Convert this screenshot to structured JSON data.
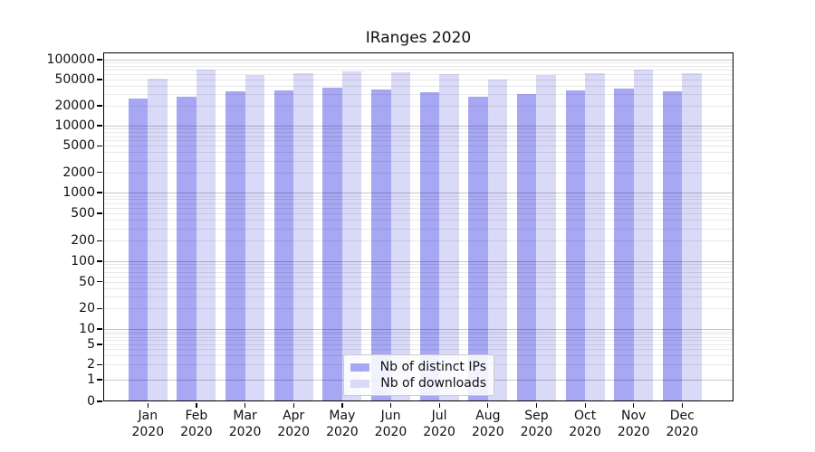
{
  "chart_data": {
    "type": "bar",
    "title": "IRanges 2020",
    "categories": [
      "Jan",
      "Feb",
      "Mar",
      "Apr",
      "May",
      "Jun",
      "Jul",
      "Aug",
      "Sep",
      "Oct",
      "Nov",
      "Dec"
    ],
    "x_year": "2020",
    "series": [
      {
        "name": "Nb of distinct IPs",
        "color": "#a7a7f3",
        "values": [
          26000,
          27500,
          33000,
          34000,
          37500,
          35000,
          32000,
          27500,
          30500,
          34000,
          36000,
          33500
        ]
      },
      {
        "name": "Nb of downloads",
        "color": "#d9d9f8",
        "values": [
          52000,
          70000,
          58500,
          63000,
          66500,
          64000,
          61000,
          50500,
          59000,
          62000,
          70000,
          61500
        ]
      }
    ],
    "yscale": "symlog",
    "yticks": [
      0,
      1,
      2,
      5,
      10,
      20,
      50,
      100,
      200,
      500,
      1000,
      2000,
      5000,
      10000,
      20000,
      50000,
      100000
    ],
    "ylim": [
      0,
      130000
    ],
    "grid": "horizontal major and minor gridlines",
    "legend_position": "lower center",
    "colors": {
      "grid_major": "#c6c6c6",
      "grid_minor": "#e9e9e9",
      "axis": "#000000",
      "background": "#ffffff"
    }
  }
}
